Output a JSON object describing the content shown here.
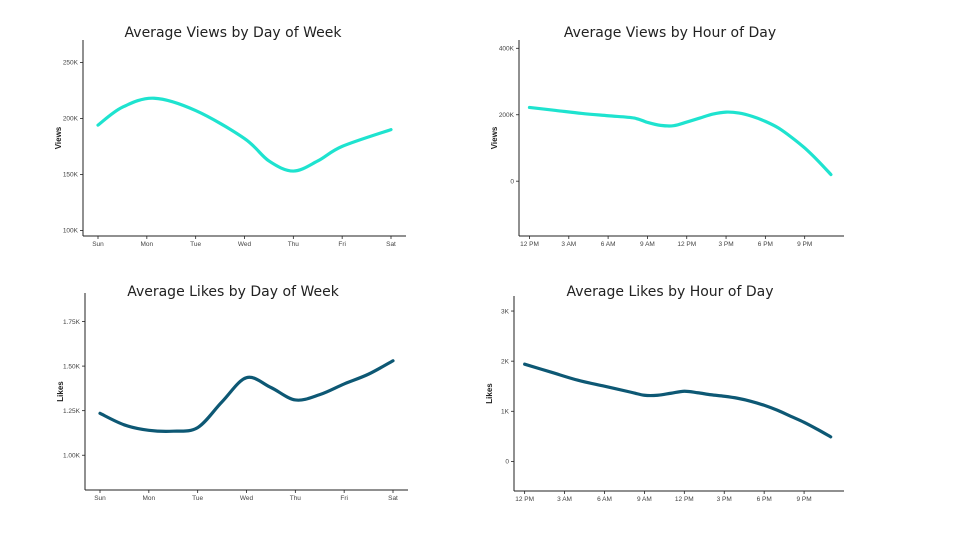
{
  "chart_data": [
    {
      "id": "views-dow",
      "type": "line",
      "title": "Average Views by Day of Week",
      "xlabel": "",
      "ylabel": "Views",
      "x_scale": "categorical",
      "categories": [
        "Sun",
        "Mon",
        "Tue",
        "Wed",
        "Thu",
        "Fri",
        "Sat"
      ],
      "y_ticks": [
        {
          "v": 100000,
          "label": "100K"
        },
        {
          "v": 150000,
          "label": "150K"
        },
        {
          "v": 200000,
          "label": "200K"
        },
        {
          "v": 250000,
          "label": "250K"
        }
      ],
      "ylim": [
        95000,
        270000
      ],
      "series": [
        {
          "color": "#1ee3cf",
          "points": [
            [
              0,
              194000
            ],
            [
              0.5,
              210000
            ],
            [
              1.15,
              218000
            ],
            [
              2,
              207000
            ],
            [
              3,
              182000
            ],
            [
              3.5,
              162000
            ],
            [
              4,
              153000
            ],
            [
              4.5,
              162000
            ],
            [
              5,
              175000
            ],
            [
              6,
              190000
            ]
          ]
        }
      ]
    },
    {
      "id": "views-hour",
      "type": "line",
      "title": "Average Views by Hour of Day",
      "xlabel": "",
      "ylabel": "Views",
      "x_scale": "hours",
      "categories": [
        "12 PM",
        "3 AM",
        "6 AM",
        "9 AM",
        "12 PM",
        "3 PM",
        "6 PM",
        "9 PM"
      ],
      "tick_positions": [
        0,
        3,
        6,
        9,
        12,
        15,
        18,
        21
      ],
      "xlim": [
        -0.8,
        24
      ],
      "y_ticks": [
        {
          "v": 0,
          "label": "0"
        },
        {
          "v": 200000,
          "label": "200K"
        },
        {
          "v": 400000,
          "label": "400K"
        }
      ],
      "ylim": [
        -165000,
        425000
      ],
      "series": [
        {
          "color": "#1ee3cf",
          "points": [
            [
              0,
              222000
            ],
            [
              2,
              213000
            ],
            [
              4,
              204000
            ],
            [
              6,
              197000
            ],
            [
              8,
              190000
            ],
            [
              9,
              177000
            ],
            [
              10,
              168000
            ],
            [
              11,
              167000
            ],
            [
              12,
              178000
            ],
            [
              13,
              190000
            ],
            [
              14,
              202000
            ],
            [
              15,
              208000
            ],
            [
              16,
              205000
            ],
            [
              17,
              195000
            ],
            [
              18,
              180000
            ],
            [
              19,
              160000
            ],
            [
              20,
              132000
            ],
            [
              21,
              100000
            ],
            [
              22,
              62000
            ],
            [
              23,
              20000
            ]
          ]
        }
      ]
    },
    {
      "id": "likes-dow",
      "type": "line",
      "title": "Average Likes by Day of Week",
      "xlabel": "",
      "ylabel": "Likes",
      "x_scale": "categorical",
      "categories": [
        "Sun",
        "Mon",
        "Tue",
        "Wed",
        "Thu",
        "Fri",
        "Sat"
      ],
      "y_ticks": [
        {
          "v": 1000,
          "label": "1.00K"
        },
        {
          "v": 1250,
          "label": "1.25K"
        },
        {
          "v": 1500,
          "label": "1.50K"
        },
        {
          "v": 1750,
          "label": "1.75K"
        }
      ],
      "ylim": [
        805,
        1910
      ],
      "series": [
        {
          "color": "#0d5874",
          "points": [
            [
              0,
              1235
            ],
            [
              0.5,
              1170
            ],
            [
              1,
              1140
            ],
            [
              1.5,
              1135
            ],
            [
              2,
              1155
            ],
            [
              2.5,
              1300
            ],
            [
              3,
              1435
            ],
            [
              3.5,
              1380
            ],
            [
              4,
              1310
            ],
            [
              4.5,
              1340
            ],
            [
              5,
              1400
            ],
            [
              5.5,
              1455
            ],
            [
              6,
              1530
            ]
          ]
        }
      ]
    },
    {
      "id": "likes-hour",
      "type": "line",
      "title": "Average Likes by Hour of Day",
      "xlabel": "",
      "ylabel": "Likes",
      "x_scale": "hours",
      "categories": [
        "12 PM",
        "3 AM",
        "6 AM",
        "9 AM",
        "12 PM",
        "3 PM",
        "6 PM",
        "9 PM"
      ],
      "tick_positions": [
        0,
        3,
        6,
        9,
        12,
        15,
        18,
        21
      ],
      "xlim": [
        -0.8,
        24
      ],
      "y_ticks": [
        {
          "v": 0,
          "label": "0"
        },
        {
          "v": 1000,
          "label": "1K"
        },
        {
          "v": 2000,
          "label": "2K"
        },
        {
          "v": 3000,
          "label": "3K"
        }
      ],
      "ylim": [
        -590,
        3300
      ],
      "series": [
        {
          "color": "#0d5874",
          "points": [
            [
              0,
              1940
            ],
            [
              2,
              1780
            ],
            [
              4,
              1620
            ],
            [
              6,
              1500
            ],
            [
              8,
              1380
            ],
            [
              9,
              1320
            ],
            [
              10,
              1320
            ],
            [
              11,
              1360
            ],
            [
              12,
              1400
            ],
            [
              13,
              1370
            ],
            [
              14,
              1330
            ],
            [
              15,
              1300
            ],
            [
              16,
              1260
            ],
            [
              17,
              1200
            ],
            [
              18,
              1120
            ],
            [
              19,
              1020
            ],
            [
              20,
              900
            ],
            [
              21,
              780
            ],
            [
              22,
              640
            ],
            [
              23,
              490
            ]
          ]
        }
      ]
    }
  ]
}
